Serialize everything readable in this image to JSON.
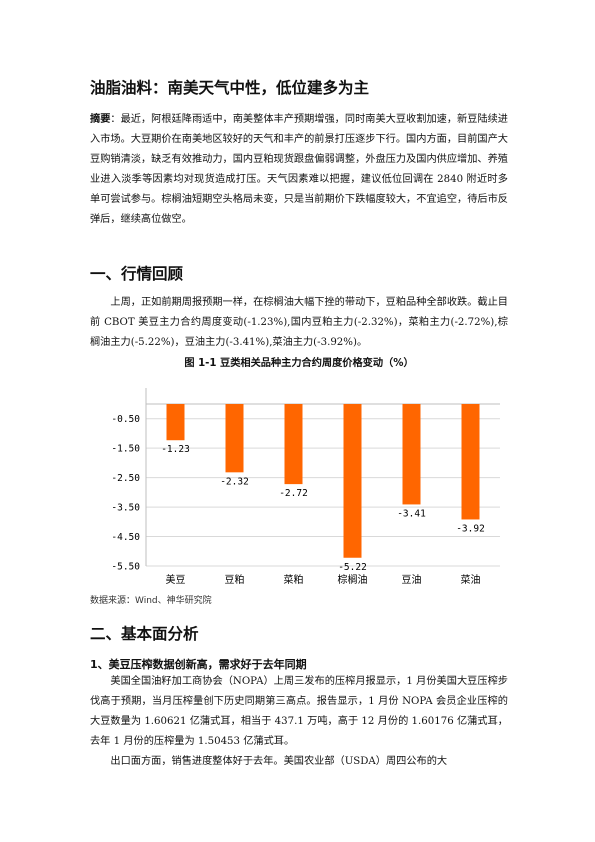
{
  "title": "油脂油料：南美天气中性，低位建多为主",
  "abstract_label": "摘要",
  "abstract_text": "：最近，阿根廷降雨适中，南美整体丰产预期增强，同时南美大豆收割加速，新豆陆续进入市场。大豆期价在南美地区较好的天气和丰产的前景打压逐步下行。国内方面，目前国产大豆购销清淡，缺乏有效推动力，国内豆粕现货跟盘偏弱调整，外盘压力及国内供应增加、养殖业进入淡季等因素均对现货造成打压。天气因素难以把握，建议低位回调在 2840 附近时多单可尝试参与。棕榈油短期空头格局未变，只是当前期价下跌幅度较大，不宜追空，待后市反弹后，继续高位做空。",
  "section1_heading": "一、行情回顾",
  "section1_para": "上周，正如前期周报预期一样，在棕榈油大幅下挫的带动下，豆粕品种全部收跌。截止目前 CBOT 美豆主力合约周度变动(-1.23%),国内豆粕主力(-2.32%)，菜粕主力(-2.72%),棕榈油主力(-5.22%)，豆油主力(-3.41%),菜油主力(-3.92%)。",
  "figure_title": "图 1-1 豆类相关品种主力合约周度价格变动（%）",
  "source": "数据来源：Wind、神华研究院",
  "section2_heading": "二、基本面分析",
  "sub1_heading": "1、美豆压榨数据创新高，需求好于去年同期",
  "sub1_para1": "美国全国油籽加工商协会（NOPA）上周三发布的压榨月报显示，1 月份美国大豆压榨步伐高于预期，当月压榨量创下历史同期第三高点。报告显示，1 月份 NOPA 会员企业压榨的大豆数量为 1.60621 亿蒲式耳，相当于 437.1 万吨，高于 12 月份的 1.60176 亿蒲式耳，去年 1 月份的压榨量为 1.50453 亿蒲式耳。",
  "sub1_para2": "出口面方面，销售进度整体好于去年。美国农业部（USDA）周四公布的大",
  "chart_data": {
    "type": "bar",
    "categories": [
      "美豆",
      "豆粕",
      "菜粕",
      "棕榈油",
      "豆油",
      "菜油"
    ],
    "values": [
      -1.23,
      -2.32,
      -2.72,
      -5.22,
      -3.41,
      -3.92
    ],
    "value_labels": [
      "-1.23",
      "-2.32",
      "-2.72",
      "-5.22",
      "-3.41",
      "-3.92"
    ],
    "title": "图 1-1 豆类相关品种主力合约周度价格变动（%）",
    "y_ticks": [
      "-0.50",
      "-1.50",
      "-2.50",
      "-3.50",
      "-4.50",
      "-5.50"
    ],
    "ylim": [
      -5.5,
      0
    ],
    "grid": true,
    "bar_color": "#FF6600"
  }
}
